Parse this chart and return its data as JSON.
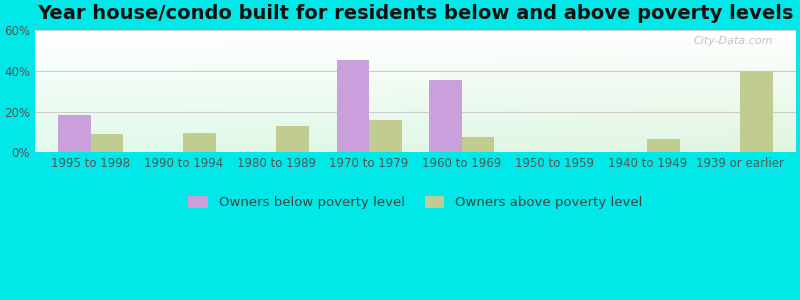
{
  "title": "Year house/condo built for residents below and above poverty levels",
  "categories": [
    "1995 to 1998",
    "1990 to 1994",
    "1980 to 1989",
    "1970 to 1979",
    "1960 to 1969",
    "1950 to 1959",
    "1940 to 1949",
    "1939 or earlier"
  ],
  "below_poverty": [
    18.5,
    0,
    0,
    45.5,
    35.5,
    0,
    0,
    0
  ],
  "above_poverty": [
    9.0,
    9.5,
    13.0,
    16.0,
    7.5,
    0,
    6.5,
    40.0
  ],
  "below_color": "#c9a0dc",
  "above_color": "#c0cc90",
  "outer_background": "#00e8e8",
  "ylim": [
    0,
    60
  ],
  "yticks": [
    0,
    20,
    40,
    60
  ],
  "ytick_labels": [
    "0%",
    "20%",
    "40%",
    "60%"
  ],
  "legend_below": "Owners below poverty level",
  "legend_above": "Owners above poverty level",
  "bar_width": 0.35,
  "title_fontsize": 14,
  "tick_fontsize": 8.5,
  "legend_fontsize": 9.5
}
